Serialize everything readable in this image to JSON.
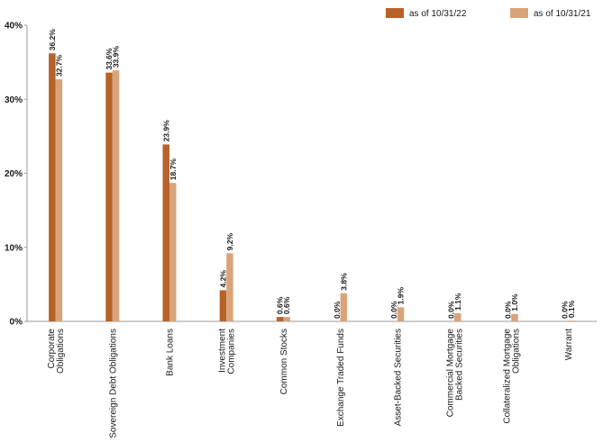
{
  "chart_data": {
    "type": "bar",
    "categories": [
      "Corporate Obligations",
      "Sovereign Debt Obligations",
      "Bank Loans",
      "Investment Companies",
      "Common Stocks",
      "Exchange Traded Funds",
      "Asset-Backed Securities",
      "Commercial Mortgage Backed Securities",
      "Collateralized Mortgage Obligations",
      "Warrant"
    ],
    "category_lines": [
      [
        "Corporate",
        "Obligations"
      ],
      [
        "Sovereign Debt Obligations"
      ],
      [
        "Bank Loans"
      ],
      [
        "Investment",
        "Companies"
      ],
      [
        "Common Stocks"
      ],
      [
        "Exchange Traded Funds"
      ],
      [
        "Asset-Backed Securities"
      ],
      [
        "Commercial Mortgage",
        "Backed Securities"
      ],
      [
        "Collateralized Mortgage",
        "Obligations"
      ],
      [
        "Warrant"
      ]
    ],
    "series": [
      {
        "name": "as of 10/31/22",
        "color": "#b8622a",
        "values": [
          36.2,
          33.6,
          23.9,
          4.2,
          0.6,
          0.0,
          0.0,
          0.0,
          0.0,
          0.0
        ],
        "labels": [
          "36.2%",
          "33.6%",
          "23.9%",
          "4.2%",
          "0.6%",
          "0.0%",
          "0.0%",
          "0.0%",
          "0.0%",
          "0.0%"
        ]
      },
      {
        "name": "as of 10/31/21",
        "color": "#d9a47a",
        "values": [
          32.7,
          33.9,
          18.7,
          9.2,
          0.6,
          3.8,
          1.9,
          1.1,
          1.0,
          0.1
        ],
        "labels": [
          "32.7%",
          "33.9%",
          "18.7%",
          "9.2%",
          "0.6%",
          "3.8%",
          "1.9%",
          "1.1%",
          "1.0%",
          "0.1%"
        ]
      }
    ],
    "ylim": [
      0,
      40
    ],
    "yticks": [
      0,
      10,
      20,
      30,
      40
    ],
    "ytick_labels": [
      "0%",
      "10%",
      "20%",
      "30%",
      "40%"
    ],
    "grid": false,
    "legend_position": "top-right",
    "title": "",
    "xlabel": "",
    "ylabel": ""
  }
}
